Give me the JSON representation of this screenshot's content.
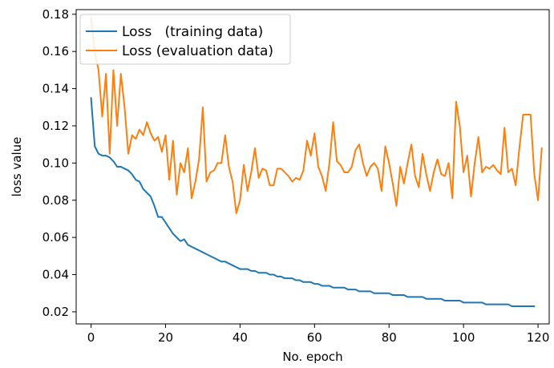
{
  "chart_data": {
    "type": "line",
    "title": "",
    "xlabel": "No. epoch",
    "ylabel": "loss value",
    "xlim": [
      -4,
      123
    ],
    "ylim": [
      0.0135,
      0.1825
    ],
    "x_ticks": [
      "0",
      "20",
      "40",
      "60",
      "80",
      "100",
      "120"
    ],
    "y_ticks": [
      "0.02",
      "0.04",
      "0.06",
      "0.08",
      "0.10",
      "0.12",
      "0.14",
      "0.16",
      "0.18"
    ],
    "grid": false,
    "legend_position": "top-left",
    "series": [
      {
        "name": "Loss   (training data)",
        "color": "#1f77b4",
        "values": [
          0.135,
          0.109,
          0.105,
          0.104,
          0.104,
          0.103,
          0.101,
          0.098,
          0.098,
          0.097,
          0.096,
          0.094,
          0.091,
          0.09,
          0.086,
          0.084,
          0.082,
          0.077,
          0.071,
          0.071,
          0.068,
          0.065,
          0.062,
          0.06,
          0.058,
          0.059,
          0.056,
          0.055,
          0.054,
          0.053,
          0.052,
          0.051,
          0.05,
          0.049,
          0.048,
          0.047,
          0.047,
          0.046,
          0.045,
          0.044,
          0.043,
          0.043,
          0.043,
          0.042,
          0.042,
          0.041,
          0.041,
          0.041,
          0.04,
          0.04,
          0.039,
          0.039,
          0.038,
          0.038,
          0.038,
          0.037,
          0.037,
          0.036,
          0.036,
          0.036,
          0.035,
          0.035,
          0.034,
          0.034,
          0.034,
          0.033,
          0.033,
          0.033,
          0.033,
          0.032,
          0.032,
          0.032,
          0.031,
          0.031,
          0.031,
          0.031,
          0.03,
          0.03,
          0.03,
          0.03,
          0.03,
          0.029,
          0.029,
          0.029,
          0.029,
          0.028,
          0.028,
          0.028,
          0.028,
          0.028,
          0.027,
          0.027,
          0.027,
          0.027,
          0.027,
          0.026,
          0.026,
          0.026,
          0.026,
          0.026,
          0.025,
          0.025,
          0.025,
          0.025,
          0.025,
          0.025,
          0.024,
          0.024,
          0.024,
          0.024,
          0.024,
          0.024,
          0.024,
          0.023,
          0.023,
          0.023,
          0.023,
          0.023,
          0.023,
          0.023
        ]
      },
      {
        "name": "Loss (evaluation data)",
        "color": "#ff7f0e",
        "values": [
          0.178,
          0.16,
          0.15,
          0.125,
          0.148,
          0.105,
          0.15,
          0.12,
          0.148,
          0.13,
          0.105,
          0.115,
          0.113,
          0.118,
          0.115,
          0.122,
          0.116,
          0.112,
          0.114,
          0.106,
          0.115,
          0.091,
          0.112,
          0.083,
          0.1,
          0.095,
          0.108,
          0.081,
          0.09,
          0.102,
          0.13,
          0.09,
          0.095,
          0.096,
          0.1,
          0.1,
          0.115,
          0.098,
          0.09,
          0.073,
          0.08,
          0.099,
          0.085,
          0.095,
          0.108,
          0.092,
          0.097,
          0.096,
          0.088,
          0.088,
          0.097,
          0.097,
          0.095,
          0.093,
          0.09,
          0.092,
          0.091,
          0.096,
          0.112,
          0.104,
          0.116,
          0.098,
          0.093,
          0.085,
          0.1,
          0.122,
          0.101,
          0.099,
          0.095,
          0.095,
          0.098,
          0.107,
          0.11,
          0.1,
          0.093,
          0.098,
          0.1,
          0.097,
          0.085,
          0.109,
          0.1,
          0.089,
          0.077,
          0.098,
          0.089,
          0.1,
          0.11,
          0.093,
          0.087,
          0.105,
          0.094,
          0.085,
          0.095,
          0.102,
          0.094,
          0.093,
          0.1,
          0.081,
          0.133,
          0.12,
          0.095,
          0.104,
          0.082,
          0.1,
          0.114,
          0.095,
          0.098,
          0.097,
          0.099,
          0.096,
          0.094,
          0.119,
          0.095,
          0.097,
          0.088,
          0.108,
          0.126,
          0.126,
          0.126,
          0.094,
          0.08,
          0.108
        ]
      }
    ]
  }
}
